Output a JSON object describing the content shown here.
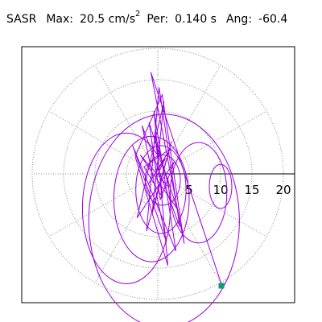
{
  "header": {
    "station": "SASR",
    "max_label": "Max:",
    "max_value": "20.5 cm/s",
    "max_unit_exp": "2",
    "per_label": "Per:",
    "per_value": "0.140 s",
    "ang_label": "Ang:",
    "ang_value": "-60.4"
  },
  "chart_data": {
    "type": "scatter",
    "subtype": "polar-hodogram",
    "title": "",
    "radial_ticks": [
      "5",
      "10",
      "15",
      "20"
    ],
    "radial_range": [
      0,
      22
    ],
    "ring_values": [
      5,
      10,
      15,
      20
    ],
    "angular_spokes_deg": 30,
    "grid": true,
    "series": [
      {
        "color": "#9900dd",
        "peak_point": {
          "radius": 20.5,
          "angle_deg": -60.4
        },
        "peak_marker_color": "#119977",
        "x": [
          0,
          1.2,
          -1.5,
          2.0,
          -2.2,
          0.8,
          -0.5,
          1.8,
          -2.8,
          3.1,
          -1.4,
          0.4,
          2.6,
          -3.3,
          1.0,
          -0.9,
          2.2,
          -1.8,
          0.2,
          3.5,
          -2.5,
          1.4,
          -4.0,
          2.9,
          -0.6,
          1.6,
          -3.6,
          0.7,
          4.2,
          -1.1,
          10.2
        ],
        "y": [
          0,
          2.5,
          -1.6,
          4.0,
          1.1,
          -3.8,
          6.5,
          -2.2,
          3.0,
          -5.6,
          8.2,
          -4.1,
          1.9,
          -7.0,
          11.5,
          -6.3,
          5.2,
          -9.1,
          13.8,
          -8.4,
          7.7,
          -10.9,
          4.5,
          -12.3,
          10.0,
          -14.6,
          2.8,
          12.6,
          -11.1,
          16.2,
          -17.8
        ]
      }
    ]
  }
}
